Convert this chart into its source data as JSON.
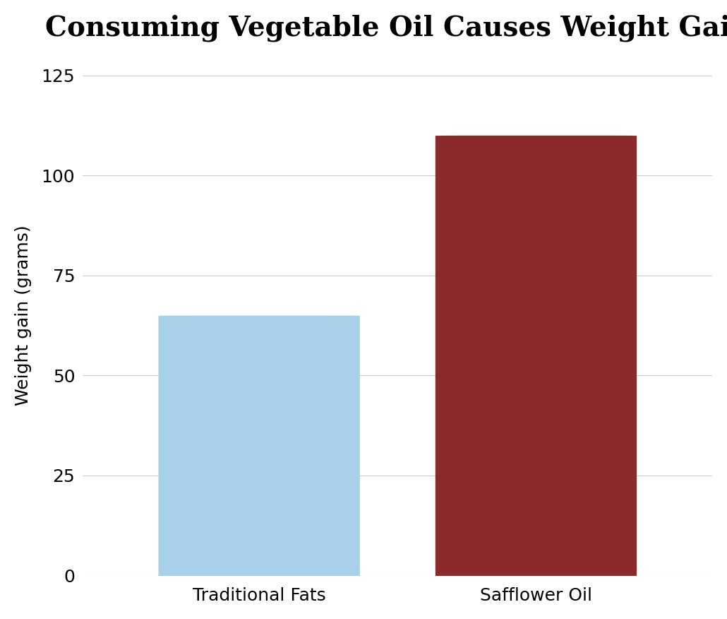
{
  "title": "Consuming Vegetable Oil Causes Weight Gain",
  "categories": [
    "Traditional Fats",
    "Safflower Oil"
  ],
  "values": [
    65,
    110
  ],
  "bar_colors": [
    "#a8d0e8",
    "#8b2a2a"
  ],
  "ylabel": "Weight gain (grams)",
  "ylim": [
    0,
    130
  ],
  "yticks": [
    0,
    25,
    50,
    75,
    100,
    125
  ],
  "title_fontsize": 28,
  "axis_fontsize": 18,
  "tick_fontsize": 18,
  "background_color": "#ffffff",
  "bar_width": 0.32,
  "x_positions": [
    0.28,
    0.72
  ]
}
